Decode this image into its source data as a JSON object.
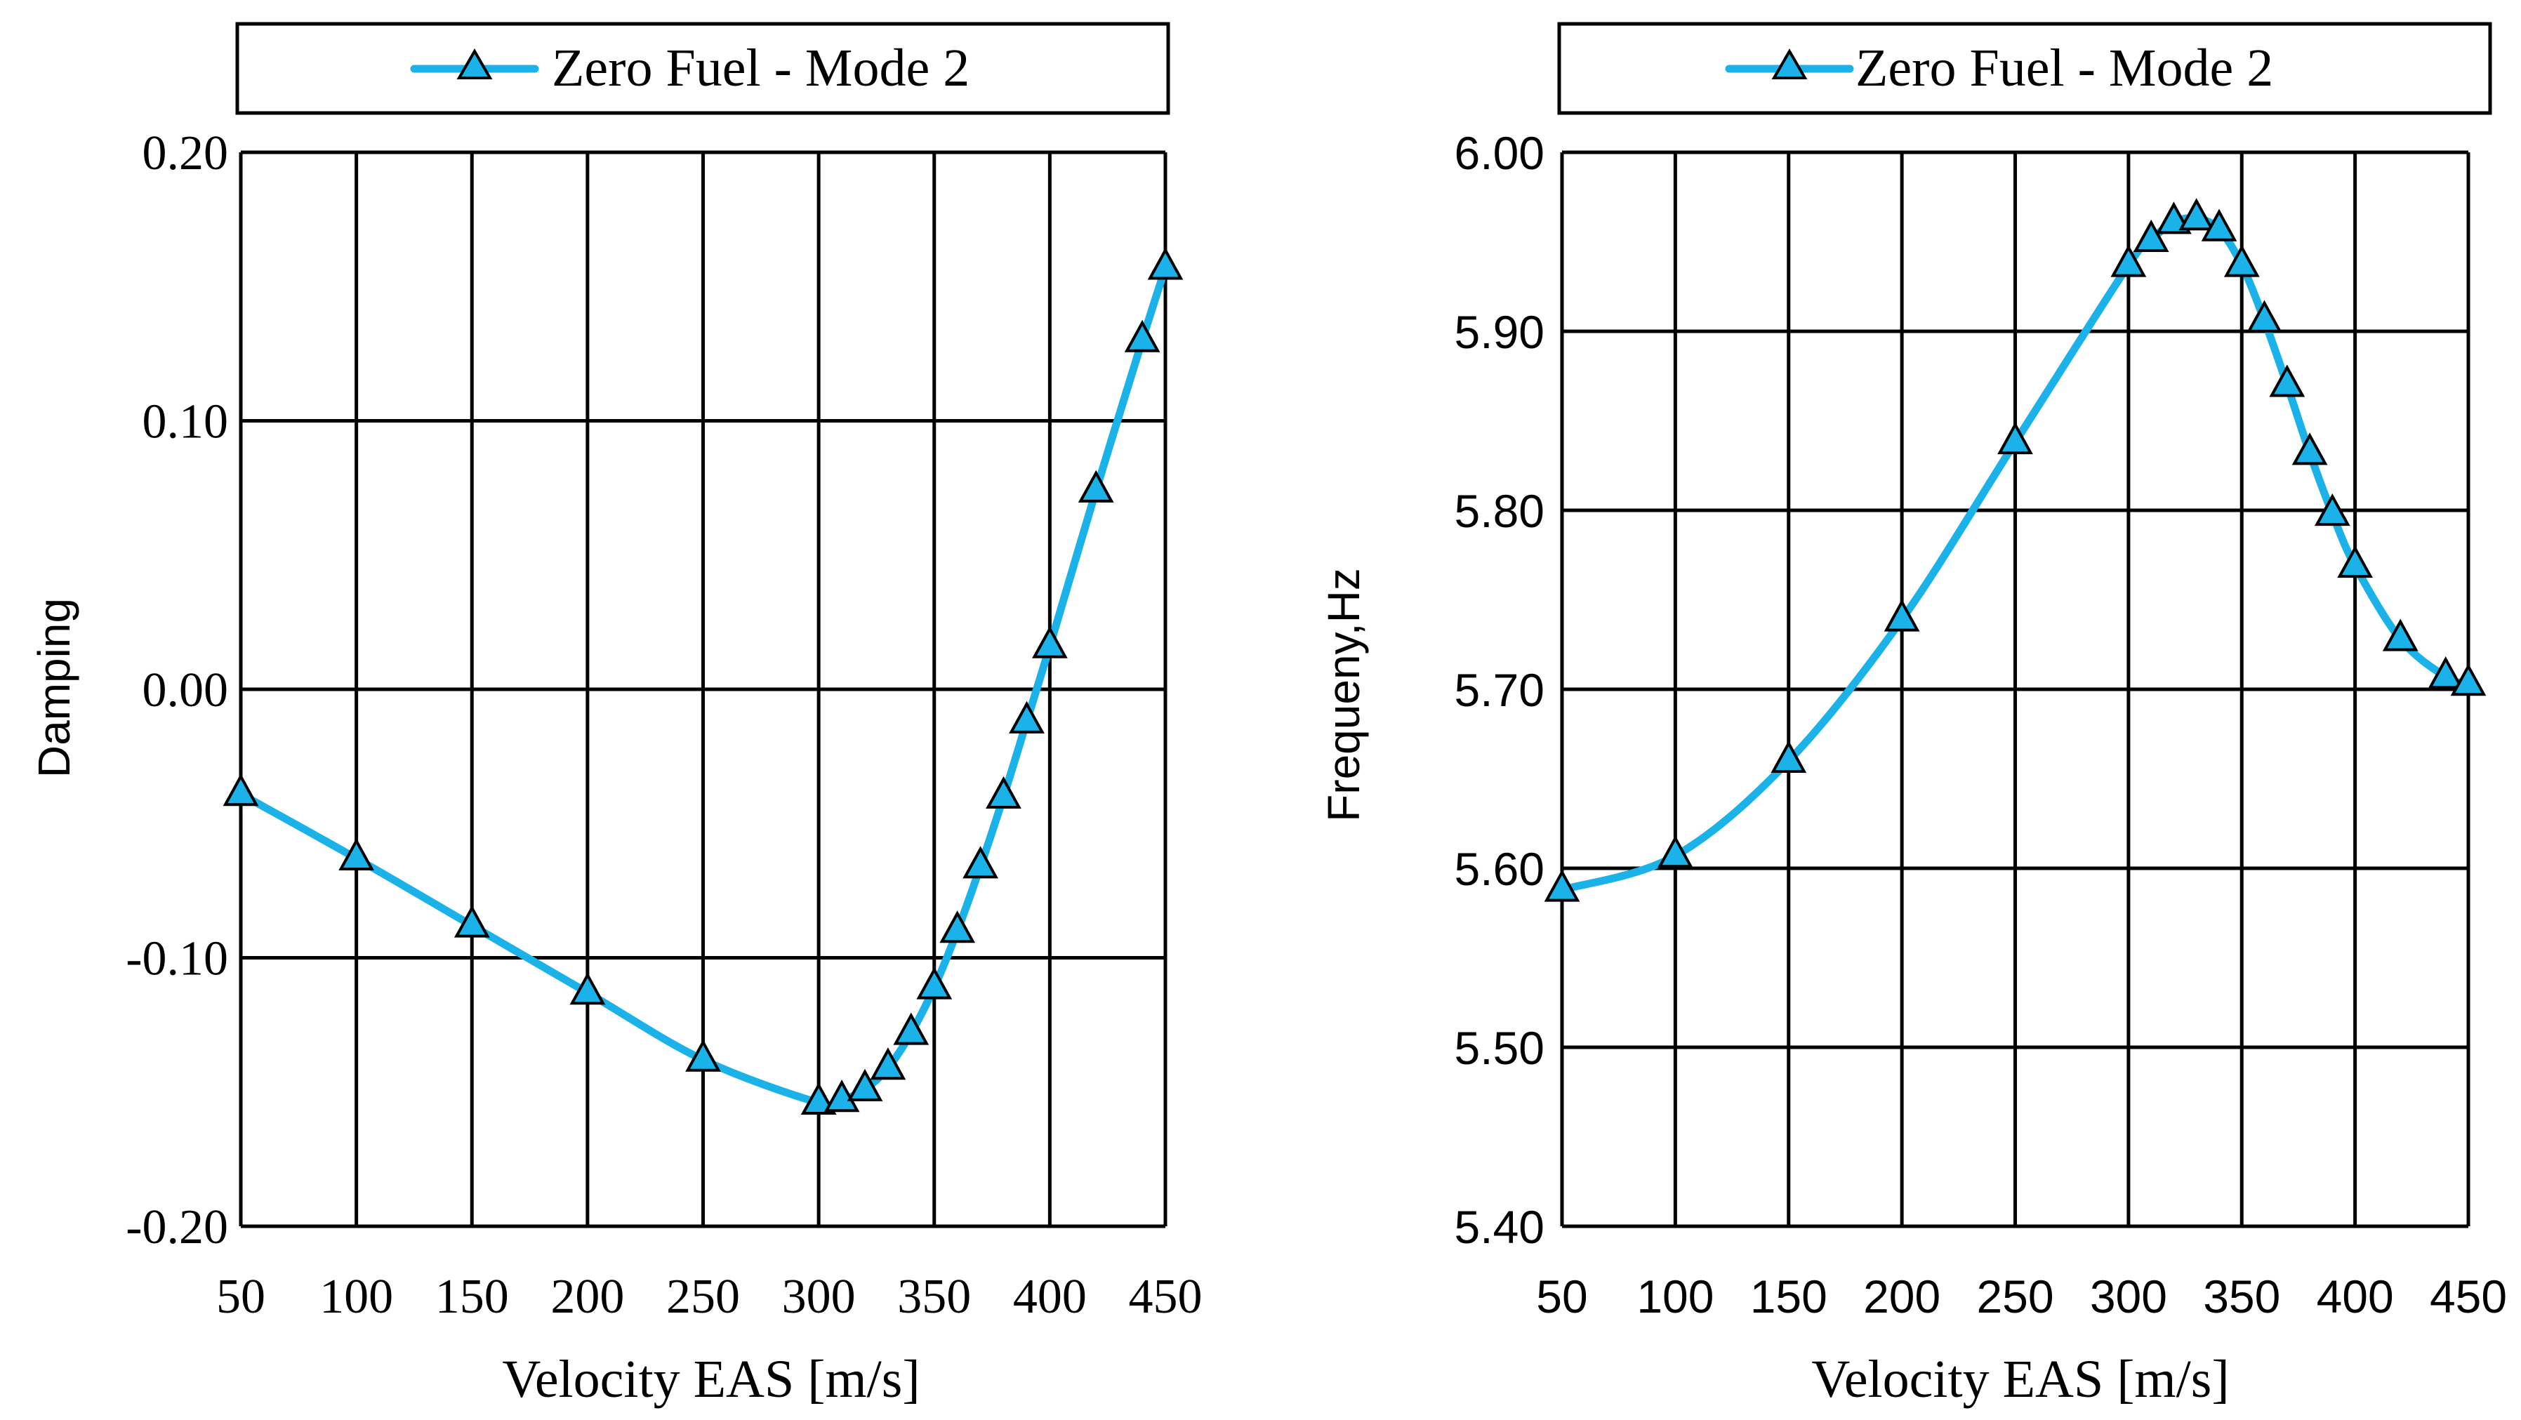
{
  "chart_data": [
    {
      "type": "line",
      "title": "",
      "xlabel": "Velocity EAS  [m/s]",
      "ylabel": "Damping",
      "xlim": [
        50,
        450
      ],
      "ylim": [
        -0.2,
        0.2
      ],
      "x_ticks": [
        50,
        100,
        150,
        200,
        250,
        300,
        350,
        400,
        450
      ],
      "y_ticks": [
        0.2,
        0.1,
        0.0,
        -0.1,
        -0.2
      ],
      "x_tick_labels": [
        "50",
        "100",
        "150",
        "200",
        "250",
        "300",
        "350",
        "400",
        "450"
      ],
      "y_tick_labels": [
        "0.20",
        "0.10",
        "0.00",
        "-0.10",
        "-0.20"
      ],
      "grid": true,
      "legend": "top",
      "series": [
        {
          "name": "Zero Fuel - Mode 2",
          "color": "#1ab2e8",
          "marker": "triangle",
          "x": [
            50,
            100,
            150,
            200,
            250,
            300,
            310,
            320,
            330,
            340,
            350,
            360,
            370,
            380,
            390,
            400,
            420,
            440,
            450
          ],
          "y": [
            -0.039,
            -0.063,
            -0.088,
            -0.113,
            -0.138,
            -0.154,
            -0.153,
            -0.149,
            -0.141,
            -0.128,
            -0.111,
            -0.09,
            -0.066,
            -0.04,
            -0.012,
            0.016,
            0.074,
            0.13,
            0.157
          ]
        }
      ]
    },
    {
      "type": "line",
      "title": "",
      "xlabel": "Velocity EAS  [m/s]",
      "ylabel": "Frequeny,Hz",
      "xlim": [
        50,
        450
      ],
      "ylim": [
        5.4,
        6.0
      ],
      "x_ticks": [
        50,
        100,
        150,
        200,
        250,
        300,
        350,
        400,
        450
      ],
      "y_ticks": [
        6.0,
        5.9,
        5.8,
        5.7,
        5.6,
        5.5,
        5.4
      ],
      "x_tick_labels": [
        "50",
        "100",
        "150",
        "200",
        "250",
        "300",
        "350",
        "400",
        "450"
      ],
      "y_tick_labels": [
        "6.00",
        "5.90",
        "5.80",
        "5.70",
        "5.60",
        "5.50",
        "5.40"
      ],
      "grid": true,
      "legend": "top",
      "series": [
        {
          "name": "Zero Fuel - Mode 2",
          "color": "#1ab2e8",
          "marker": "triangle",
          "x": [
            50,
            100,
            150,
            200,
            250,
            300,
            310,
            320,
            330,
            340,
            350,
            360,
            370,
            380,
            390,
            400,
            420,
            440,
            450
          ],
          "y": [
            5.588,
            5.607,
            5.66,
            5.739,
            5.838,
            5.937,
            5.951,
            5.961,
            5.963,
            5.957,
            5.937,
            5.906,
            5.87,
            5.832,
            5.798,
            5.769,
            5.728,
            5.707,
            5.703
          ]
        }
      ]
    }
  ]
}
